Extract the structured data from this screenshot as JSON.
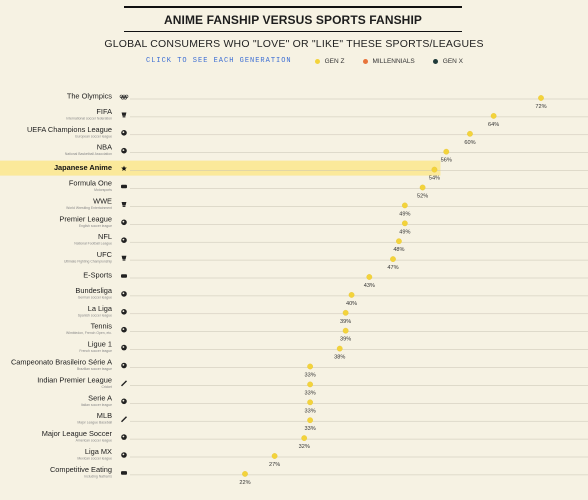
{
  "header": {
    "title": "ANIME FANSHIP VERSUS SPORTS FANSHIP",
    "subtitle": "GLOBAL CONSUMERS WHO \"LOVE\" OR \"LIKE\" THESE SPORTS/LEAGUES",
    "generation_link": "CLICK TO SEE EACH GENERATION"
  },
  "legend": [
    {
      "label": "GEN Z",
      "color": "#f3d33b"
    },
    {
      "label": "MILLENNIALS",
      "color": "#e8743b"
    },
    {
      "label": "GEN X",
      "color": "#1f3a3a"
    }
  ],
  "colors": {
    "background": "#f6f2e3",
    "dot": "#f3d33b",
    "highlight": "#fbe99a",
    "line": "#c8c3b3"
  },
  "chart_data": {
    "type": "scatter",
    "title": "ANIME FANSHIP VERSUS SPORTS FANSHIP",
    "subtitle": "GLOBAL CONSUMERS WHO \"LOVE\" OR \"LIKE\" THESE SPORTS/LEAGUES",
    "series": [
      {
        "name": "GEN Z",
        "color": "#f3d33b"
      }
    ],
    "highlighted": "Japanese Anime",
    "x_range": [
      20,
      75
    ],
    "categories": [
      {
        "name": "The Olympics",
        "sub": "",
        "value": 72,
        "label": "72%",
        "icon": "olympic-rings-icon"
      },
      {
        "name": "FIFA",
        "sub": "International soccer federation",
        "value": 64,
        "label": "64%",
        "icon": "trophy-icon"
      },
      {
        "name": "UEFA Champions League",
        "sub": "European soccer league",
        "value": 60,
        "label": "60%",
        "icon": "ball-icon"
      },
      {
        "name": "NBA",
        "sub": "National Basketball Association",
        "value": 56,
        "label": "56%",
        "icon": "basketball-icon"
      },
      {
        "name": "Japanese Anime",
        "sub": "",
        "value": 54,
        "label": "54%",
        "icon": "star-icon"
      },
      {
        "name": "Formula One",
        "sub": "Motorsports",
        "value": 52,
        "label": "52%",
        "icon": "car-icon"
      },
      {
        "name": "WWE",
        "sub": "World Wrestling Entertainment",
        "value": 49,
        "label": "49%",
        "icon": "wrestler-icon"
      },
      {
        "name": "Premier League",
        "sub": "English soccer league",
        "value": 49,
        "label": "49%",
        "icon": "soccer-ball-icon"
      },
      {
        "name": "NFL",
        "sub": "National Football League",
        "value": 48,
        "label": "48%",
        "icon": "football-icon"
      },
      {
        "name": "UFC",
        "sub": "Ultimate Fighting Championship",
        "value": 47,
        "label": "47%",
        "icon": "glove-icon"
      },
      {
        "name": "E-Sports",
        "sub": "",
        "value": 43,
        "label": "43%",
        "icon": "controller-icon"
      },
      {
        "name": "Bundesliga",
        "sub": "German soccer league",
        "value": 40,
        "label": "40%",
        "icon": "soccer-ball-icon"
      },
      {
        "name": "La Liga",
        "sub": "Spanish soccer league",
        "value": 39,
        "label": "39%",
        "icon": "soccer-ball-icon"
      },
      {
        "name": "Tennis",
        "sub": "Wimbledon, French Open, etc.",
        "value": 39,
        "label": "39%",
        "icon": "tennis-ball-icon"
      },
      {
        "name": "Ligue 1",
        "sub": "French soccer league",
        "value": 38,
        "label": "38%",
        "icon": "soccer-ball-icon"
      },
      {
        "name": "Campeonato Brasileiro Série A",
        "sub": "Brazilian soccer league",
        "value": 33,
        "label": "33%",
        "icon": "soccer-ball-icon"
      },
      {
        "name": "Indian Premier League",
        "sub": "Cricket",
        "value": 33,
        "label": "33%",
        "icon": "cricket-bat-icon"
      },
      {
        "name": "Serie A",
        "sub": "Italian soccer league",
        "value": 33,
        "label": "33%",
        "icon": "soccer-ball-icon"
      },
      {
        "name": "MLB",
        "sub": "Major League Baseball",
        "value": 33,
        "label": "33%",
        "icon": "baseball-bat-icon"
      },
      {
        "name": "Major League Soccer",
        "sub": "American soccer league",
        "value": 32,
        "label": "32%",
        "icon": "soccer-ball-icon"
      },
      {
        "name": "Liga MX",
        "sub": "Mexican soccer league",
        "value": 27,
        "label": "27%",
        "icon": "soccer-ball-icon"
      },
      {
        "name": "Competitive Eating",
        "sub": "Including Nathan's",
        "value": 22,
        "label": "22%",
        "icon": "burger-icon"
      }
    ]
  }
}
